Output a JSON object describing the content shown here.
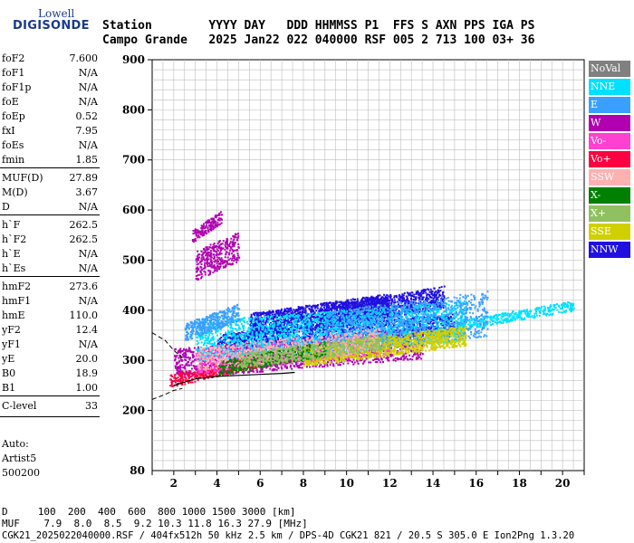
{
  "logo": {
    "line1": "Lowell",
    "line2": "DIGISONDE"
  },
  "header": {
    "line1": "Station        YYYY DAY   DDD HHMMSS P1  FFS S AXN PPS IGA PS",
    "line2": "Campo Grande   2025 Jan22 022 040000 RSF 005 2 713 100 03+ 36"
  },
  "params": [
    {
      "k": "foF2",
      "v": "7.600"
    },
    {
      "k": "foF1",
      "v": "N/A"
    },
    {
      "k": "foF1p",
      "v": "N/A"
    },
    {
      "k": "foE",
      "v": "N/A"
    },
    {
      "k": "foEp",
      "v": "0.52"
    },
    {
      "k": "fxI",
      "v": "7.95"
    },
    {
      "k": "foEs",
      "v": "N/A"
    },
    {
      "k": "fmin",
      "v": "1.85"
    },
    {
      "k": "MUF(D)",
      "v": "27.89"
    },
    {
      "k": "M(D)",
      "v": "3.67"
    },
    {
      "k": "D",
      "v": "N/A"
    },
    {
      "k": "h`F",
      "v": "262.5"
    },
    {
      "k": "h`F2",
      "v": "262.5"
    },
    {
      "k": "h`E",
      "v": "N/A"
    },
    {
      "k": "h`Es",
      "v": "N/A"
    },
    {
      "k": "hmF2",
      "v": "273.6"
    },
    {
      "k": "hmF1",
      "v": "N/A"
    },
    {
      "k": "hmE",
      "v": "110.0"
    },
    {
      "k": "yF2",
      "v": "12.4"
    },
    {
      "k": "yF1",
      "v": "N/A"
    },
    {
      "k": "yE",
      "v": "20.0"
    },
    {
      "k": "B0",
      "v": "18.9"
    },
    {
      "k": "B1",
      "v": "1.00"
    },
    {
      "k": "C-level",
      "v": "33"
    }
  ],
  "footer_left": {
    "auto": "Auto:",
    "artist": "Artist5",
    "code": "500200"
  },
  "legend": [
    {
      "label": "NoVal",
      "color": "#808080"
    },
    {
      "label": "NNE",
      "color": "#00e0ff"
    },
    {
      "label": "E",
      "color": "#3aa0ff"
    },
    {
      "label": "W",
      "color": "#b000b0"
    },
    {
      "label": "Vo-",
      "color": "#ff40d0"
    },
    {
      "label": "Vo+",
      "color": "#ff0040"
    },
    {
      "label": "SSW",
      "color": "#ffb0b0"
    },
    {
      "label": "X-",
      "color": "#008000"
    },
    {
      "label": "X+",
      "color": "#90c060"
    },
    {
      "label": "SSE",
      "color": "#d0d000"
    },
    {
      "label": "NNW",
      "color": "#2010e0"
    }
  ],
  "bottom": {
    "line1": "D     100  200  400  600  800 1000 1500 3000 [km]",
    "line2": "MUF    7.9  8.0  8.5  9.2 10.3 11.8 16.3 27.9 [MHz]",
    "line3": "CGK21_2025022040000.RSF / 404fx512h 50 kHz 2.5 km / DPS-4D CGK21 821 / 20.5 S 305.0 E Ion2Png 1.3.20"
  },
  "chart_data": {
    "type": "scatter",
    "xlim": [
      1,
      21
    ],
    "ylim": [
      80,
      900
    ],
    "x_ticks": [
      2,
      4,
      6,
      8,
      10,
      12,
      14,
      16,
      18,
      20
    ],
    "y_ticks": [
      200,
      300,
      400,
      500,
      600,
      700,
      800,
      900
    ],
    "y_bottom_label": "80",
    "grid": true,
    "legend_position": "right",
    "trace_solid": [
      [
        2.0,
        250
      ],
      [
        3.0,
        263
      ],
      [
        4.0,
        268
      ],
      [
        5.0,
        270
      ],
      [
        6.0,
        272
      ],
      [
        7.0,
        274
      ],
      [
        7.6,
        276
      ]
    ],
    "trace_dashed_upper": [
      [
        1.0,
        355
      ],
      [
        1.6,
        340
      ],
      [
        2.0,
        320
      ],
      [
        2.4,
        305
      ]
    ],
    "trace_dashed_lower": [
      [
        1.0,
        222
      ],
      [
        1.6,
        232
      ],
      [
        2.0,
        240
      ],
      [
        2.4,
        244
      ]
    ],
    "series": [
      {
        "name": "NNW",
        "color": "#2010e0",
        "clouds": [
          [
            4.0,
            15.0,
            335,
            375,
            10
          ],
          [
            5.5,
            12.0,
            370,
            415,
            15
          ],
          [
            9.0,
            14.5,
            385,
            430,
            12
          ]
        ]
      },
      {
        "name": "W",
        "color": "#b000b0",
        "clouds": [
          [
            2.0,
            13.5,
            285,
            345,
            10
          ],
          [
            3.0,
            5.0,
            480,
            540,
            12
          ],
          [
            2.8,
            4.2,
            555,
            580,
            8
          ]
        ]
      },
      {
        "name": "Vo+",
        "color": "#ff0040",
        "clouds": [
          [
            1.8,
            6.0,
            268,
            292,
            6
          ]
        ]
      },
      {
        "name": "Vo-",
        "color": "#ff40d0",
        "clouds": [
          [
            3.0,
            12.0,
            295,
            340,
            8
          ]
        ]
      },
      {
        "name": "NNE",
        "color": "#00e0ff",
        "clouds": [
          [
            3.0,
            15.5,
            320,
            400,
            12
          ],
          [
            15.0,
            20.5,
            380,
            400,
            5
          ]
        ]
      },
      {
        "name": "E",
        "color": "#3aa0ff",
        "clouds": [
          [
            9.0,
            16.5,
            330,
            420,
            10
          ],
          [
            2.5,
            5.0,
            360,
            395,
            12
          ]
        ]
      },
      {
        "name": "SSE",
        "color": "#d0d000",
        "clouds": [
          [
            8.0,
            15.5,
            310,
            350,
            10
          ]
        ]
      },
      {
        "name": "SSW",
        "color": "#ffb0b0",
        "clouds": [
          [
            3.0,
            11.5,
            300,
            345,
            6
          ]
        ]
      },
      {
        "name": "X-",
        "color": "#008000",
        "clouds": [
          [
            4.0,
            9.0,
            290,
            320,
            5
          ]
        ]
      },
      {
        "name": "X+",
        "color": "#90c060",
        "clouds": [
          [
            5.0,
            12.0,
            305,
            335,
            5
          ]
        ]
      }
    ]
  }
}
